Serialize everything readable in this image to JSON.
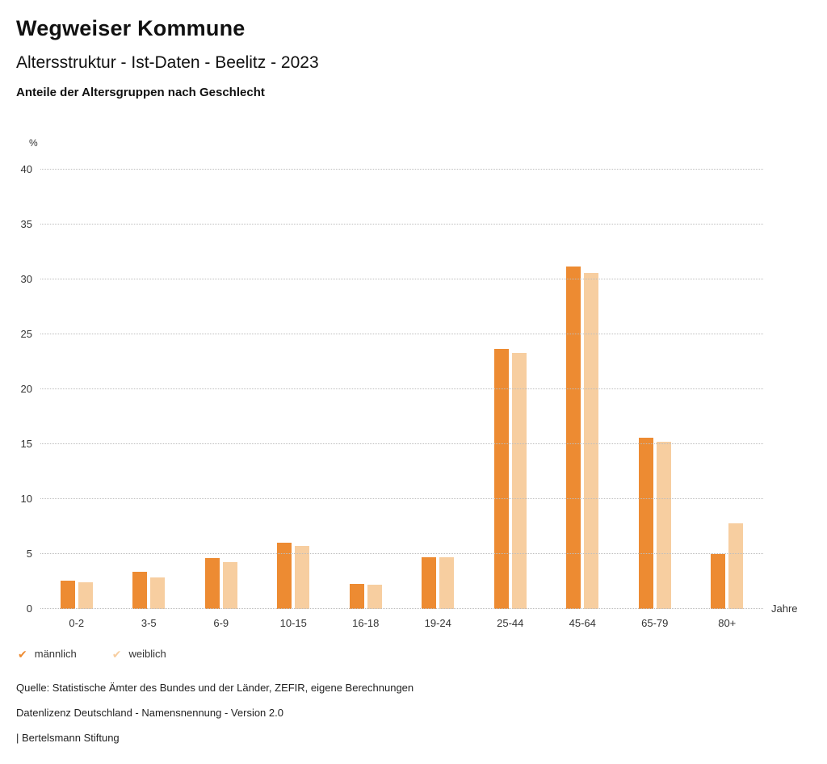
{
  "header": {
    "title": "Wegweiser Kommune",
    "subtitle": "Altersstruktur - Ist-Daten - Beelitz - 2023",
    "chart_heading": "Anteile der Altersgruppen nach Geschlecht"
  },
  "chart_data": {
    "type": "bar",
    "title": "Anteile der Altersgruppen nach Geschlecht",
    "xlabel": "Jahre",
    "ylabel": "%",
    "ylim": [
      0,
      40
    ],
    "ytick_step": 5,
    "grid": true,
    "legend_position": "bottom",
    "categories": [
      "0-2",
      "3-5",
      "6-9",
      "10-15",
      "16-18",
      "19-24",
      "25-44",
      "45-64",
      "65-79",
      "80+"
    ],
    "series": [
      {
        "name": "männlich",
        "color": "#ED8B32",
        "values": [
          2.6,
          3.4,
          4.6,
          6.0,
          2.3,
          4.7,
          23.7,
          31.2,
          15.6,
          5.0
        ]
      },
      {
        "name": "weiblich",
        "color": "#F7CEA0",
        "values": [
          2.4,
          2.9,
          4.3,
          5.7,
          2.2,
          4.7,
          23.3,
          30.6,
          15.2,
          7.8
        ]
      }
    ]
  },
  "footer": {
    "source": "Quelle: Statistische Ämter des Bundes und der Länder, ZEFIR, eigene Berechnungen",
    "license": "Datenlizenz Deutschland - Namensnennung - Version 2.0",
    "brand": "| Bertelsmann Stiftung"
  }
}
